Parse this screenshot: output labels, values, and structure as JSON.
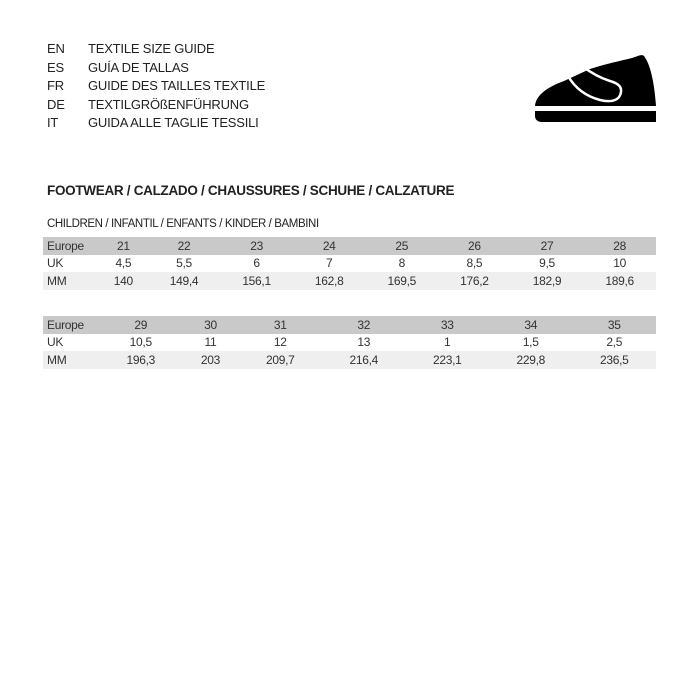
{
  "languages": [
    {
      "code": "EN",
      "text": "TEXTILE SIZE GUIDE"
    },
    {
      "code": "ES",
      "text": "GUÍA DE TALLAS"
    },
    {
      "code": "FR",
      "text": "GUIDE DES TAILLES TEXTILE"
    },
    {
      "code": "DE",
      "text": "TEXTILGRÖßENFÜHRUNG"
    },
    {
      "code": "IT",
      "text": "GUIDA ALLE TAGLIE TESSILI"
    }
  ],
  "icon": "velcro-shoe-icon",
  "title": "FOOTWEAR / CALZADO / CHAUSSURES / SCHUHE / CALZATURE",
  "subtitle": "CHILDREN / INFANTIL / ENFANTS / KINDER / BAMBINI",
  "tables": [
    {
      "rows": [
        {
          "label": "Europe",
          "values": [
            "21",
            "22",
            "23",
            "24",
            "25",
            "26",
            "27",
            "28"
          ]
        },
        {
          "label": "UK",
          "values": [
            "4,5",
            "5,5",
            "6",
            "7",
            "8",
            "8,5",
            "9,5",
            "10"
          ]
        },
        {
          "label": "MM",
          "values": [
            "140",
            "149,4",
            "156,1",
            "162,8",
            "169,5",
            "176,2",
            "182,9",
            "189,6"
          ]
        }
      ]
    },
    {
      "rows": [
        {
          "label": "Europe",
          "values": [
            "29",
            "30",
            "31",
            "32",
            "33",
            "34",
            "35",
            ""
          ]
        },
        {
          "label": "UK",
          "values": [
            "10,5",
            "11",
            "12",
            "13",
            "1",
            "1,5",
            "2,5",
            ""
          ]
        },
        {
          "label": "MM",
          "values": [
            "196,3",
            "203",
            "209,7",
            "216,4",
            "223,1",
            "229,8",
            "236,5",
            ""
          ]
        }
      ]
    }
  ],
  "colors": {
    "header_row": "#c9c9c9",
    "mm_row": "#efefef"
  }
}
